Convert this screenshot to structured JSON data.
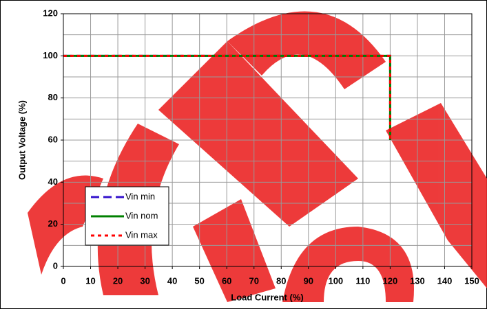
{
  "chart_data": {
    "type": "line",
    "x_label": "Load Current (%)",
    "y_label": "Output Voltage (%)",
    "x": [
      0,
      120,
      120
    ],
    "series": [
      {
        "name": "Vin min",
        "color": "#3311cc",
        "style": "dashed",
        "values": [
          100,
          100,
          60
        ]
      },
      {
        "name": "Vin nom",
        "color": "#008000",
        "style": "solid",
        "values": [
          100,
          100,
          60
        ]
      },
      {
        "name": "Vin max",
        "color": "#ff0000",
        "style": "dotted",
        "values": [
          100,
          100,
          60
        ]
      }
    ],
    "xlim": [
      0,
      150
    ],
    "xticks": [
      0,
      10,
      20,
      30,
      40,
      50,
      60,
      70,
      80,
      90,
      100,
      110,
      120,
      130,
      140,
      150
    ],
    "ylim": [
      0,
      120
    ],
    "yticks": [
      0,
      20,
      40,
      60,
      80,
      100,
      120
    ],
    "ygrid": [
      10,
      30,
      50,
      70,
      90,
      110
    ],
    "grid": true,
    "legend": "lower left"
  }
}
